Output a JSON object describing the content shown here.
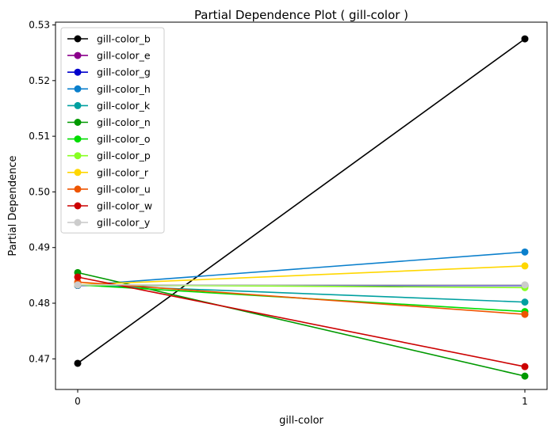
{
  "chart_data": {
    "type": "line",
    "title": "Partial Dependence Plot ( gill-color )",
    "xlabel": "gill-color",
    "ylabel": "Partial Dependence",
    "x": [
      0,
      1
    ],
    "x_ticks": [
      "0",
      "1"
    ],
    "ylim": [
      0.4645,
      0.5305
    ],
    "y_ticks": [
      "0.47",
      "0.48",
      "0.49",
      "0.50",
      "0.51",
      "0.52",
      "0.53"
    ],
    "y_tick_values": [
      0.47,
      0.48,
      0.49,
      0.5,
      0.51,
      0.52,
      0.53
    ],
    "grid": false,
    "legend": "top-left",
    "series": [
      {
        "name": "gill-color_b",
        "color": "#000000",
        "values": [
          0.4692,
          0.5275
        ]
      },
      {
        "name": "gill-color_e",
        "color": "#8b008b",
        "values": [
          0.4832,
          0.4832
        ]
      },
      {
        "name": "gill-color_g",
        "color": "#0000cc",
        "values": [
          0.4832,
          0.4832
        ]
      },
      {
        "name": "gill-color_h",
        "color": "#0a7fcc",
        "values": [
          0.4832,
          0.4892
        ]
      },
      {
        "name": "gill-color_k",
        "color": "#00a0a0",
        "values": [
          0.4833,
          0.4802
        ]
      },
      {
        "name": "gill-color_n",
        "color": "#009900",
        "values": [
          0.4855,
          0.4669
        ]
      },
      {
        "name": "gill-color_o",
        "color": "#00dd00",
        "values": [
          0.4833,
          0.4785
        ]
      },
      {
        "name": "gill-color_p",
        "color": "#88ff22",
        "values": [
          0.4833,
          0.4828
        ]
      },
      {
        "name": "gill-color_r",
        "color": "#ffd700",
        "values": [
          0.4833,
          0.4867
        ]
      },
      {
        "name": "gill-color_u",
        "color": "#ee5500",
        "values": [
          0.4838,
          0.478
        ]
      },
      {
        "name": "gill-color_w",
        "color": "#cc0000",
        "values": [
          0.4847,
          0.4686
        ]
      },
      {
        "name": "gill-color_y",
        "color": "#cccccc",
        "values": [
          0.4833,
          0.4833
        ]
      }
    ]
  }
}
